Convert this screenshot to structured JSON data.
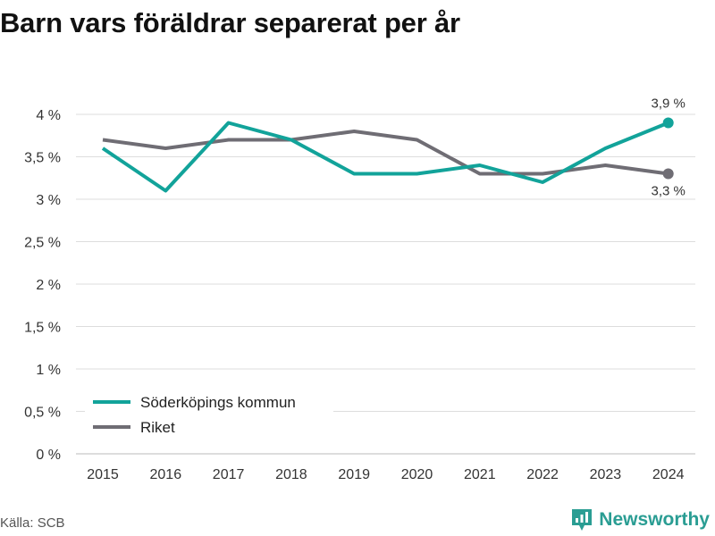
{
  "header": {
    "title": "Barn vars föräldrar separerat per år"
  },
  "footer": {
    "source": "Källa: SCB",
    "brand": "Newsworthy",
    "brand_icon": "newsworthy-logo-icon"
  },
  "colors": {
    "series_1": "#12a39a",
    "series_2": "#6f6d74",
    "grid": "#dddddd",
    "brand": "#2a9d93"
  },
  "chart_data": {
    "type": "line",
    "title": "Barn vars föräldrar separerat per år",
    "xlabel": "",
    "ylabel": "",
    "x": [
      "2015",
      "2016",
      "2017",
      "2018",
      "2019",
      "2020",
      "2021",
      "2022",
      "2023",
      "2024"
    ],
    "ylim": [
      0,
      4
    ],
    "yticks": [
      0,
      0.5,
      1,
      1.5,
      2,
      2.5,
      3,
      3.5,
      4
    ],
    "ytick_labels": [
      "0 %",
      "0,5 %",
      "1 %",
      "1,5 %",
      "2 %",
      "2,5 %",
      "3 %",
      "3,5 %",
      "4 %"
    ],
    "grid": true,
    "legend_position": "bottom-left",
    "series": [
      {
        "name": "Söderköpings kommun",
        "color": "#12a39a",
        "values": [
          3.6,
          3.1,
          3.9,
          3.7,
          3.3,
          3.3,
          3.4,
          3.2,
          3.6,
          3.9
        ],
        "end_label": "3,9 %"
      },
      {
        "name": "Riket",
        "color": "#6f6d74",
        "values": [
          3.7,
          3.6,
          3.7,
          3.7,
          3.8,
          3.7,
          3.3,
          3.3,
          3.4,
          3.3
        ],
        "end_label": "3,3 %"
      }
    ]
  }
}
